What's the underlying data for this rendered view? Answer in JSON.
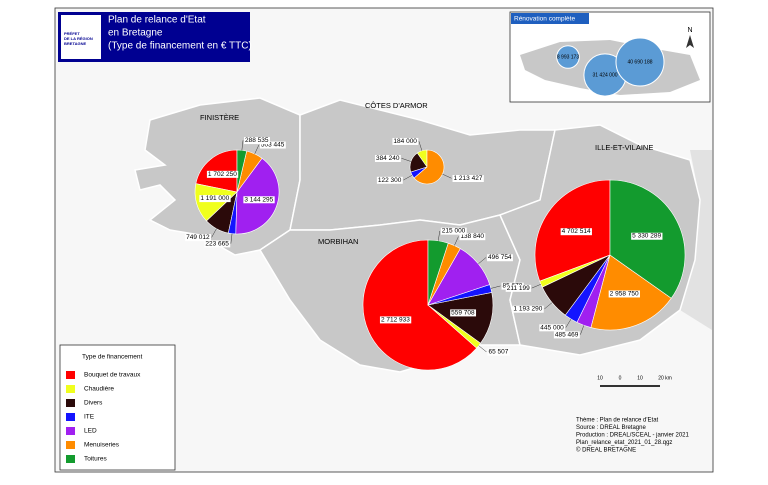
{
  "header": {
    "title": "Plan de relance d'Etat",
    "title2": "en Bretagne",
    "subtitle": "(Type de financement en € TTC)",
    "logo": [
      "PRÉFET",
      "DE LA RÉGION",
      "BRETAGNE"
    ]
  },
  "chart_data": {
    "type": "pie-map",
    "legend_title": "Type de financement",
    "categories": [
      "Bouquet de travaux",
      "Chaudière",
      "Divers",
      "ITE",
      "LED",
      "Menuiseries",
      "Toitures"
    ],
    "colors": [
      "#ff0000",
      "#f0ff1e",
      "#2b0a0a",
      "#1414ff",
      "#a020f0",
      "#ff8c00",
      "#139b2e"
    ],
    "regions": [
      {
        "name": "FINISTÈRE",
        "values": [
          1702250,
          1191000,
          749012,
          223665,
          3144295,
          503445,
          288535
        ],
        "value_labels": [
          "1 702 250",
          "1 191 000",
          "749 012",
          "223 665",
          "3 144 295",
          "503 445",
          "288 535"
        ]
      },
      {
        "name": "CÔTES D'ARMOR",
        "values": [
          null,
          184000,
          384240,
          122300,
          null,
          1213427,
          null
        ],
        "value_labels": [
          null,
          "184 000",
          "384 240",
          "122 300",
          null,
          "1 213 427",
          null
        ]
      },
      {
        "name": "MORBIHAN",
        "values": [
          2712933,
          65507,
          559708,
          85670,
          496754,
          138840,
          215000
        ],
        "value_labels": [
          "2 712 933",
          "65 507",
          "559 708",
          "85 670",
          "496 754",
          "138 840",
          "215 000"
        ]
      },
      {
        "name": "ILLE-ET-VILAINE",
        "values": [
          4702514,
          211199,
          1193290,
          445000,
          485469,
          2958750,
          5330289
        ],
        "value_labels": [
          "4 702 514",
          "211 199",
          "1 193 290",
          "445 000",
          "485 469",
          "2 958 750",
          "5 330 289"
        ]
      }
    ]
  },
  "inset": {
    "title": "Rénovation complète",
    "values": [
      8993173,
      31424000,
      40690188
    ],
    "value_labels": [
      "8 993 173",
      "31 424 000",
      "40 690 188"
    ]
  },
  "scale_bar": {
    "labels": [
      "10",
      "0",
      "10",
      "20 km"
    ]
  },
  "north": "N",
  "notes": [
    "Thème : Plan de relance d'Etat",
    "Source : DREAL Bretagne",
    "Production : DREAL/SCEAL - janvier 2021",
    "Plan_relance_etat_2021_01_28.qgz",
    "© DREAL BRETAGNE"
  ]
}
